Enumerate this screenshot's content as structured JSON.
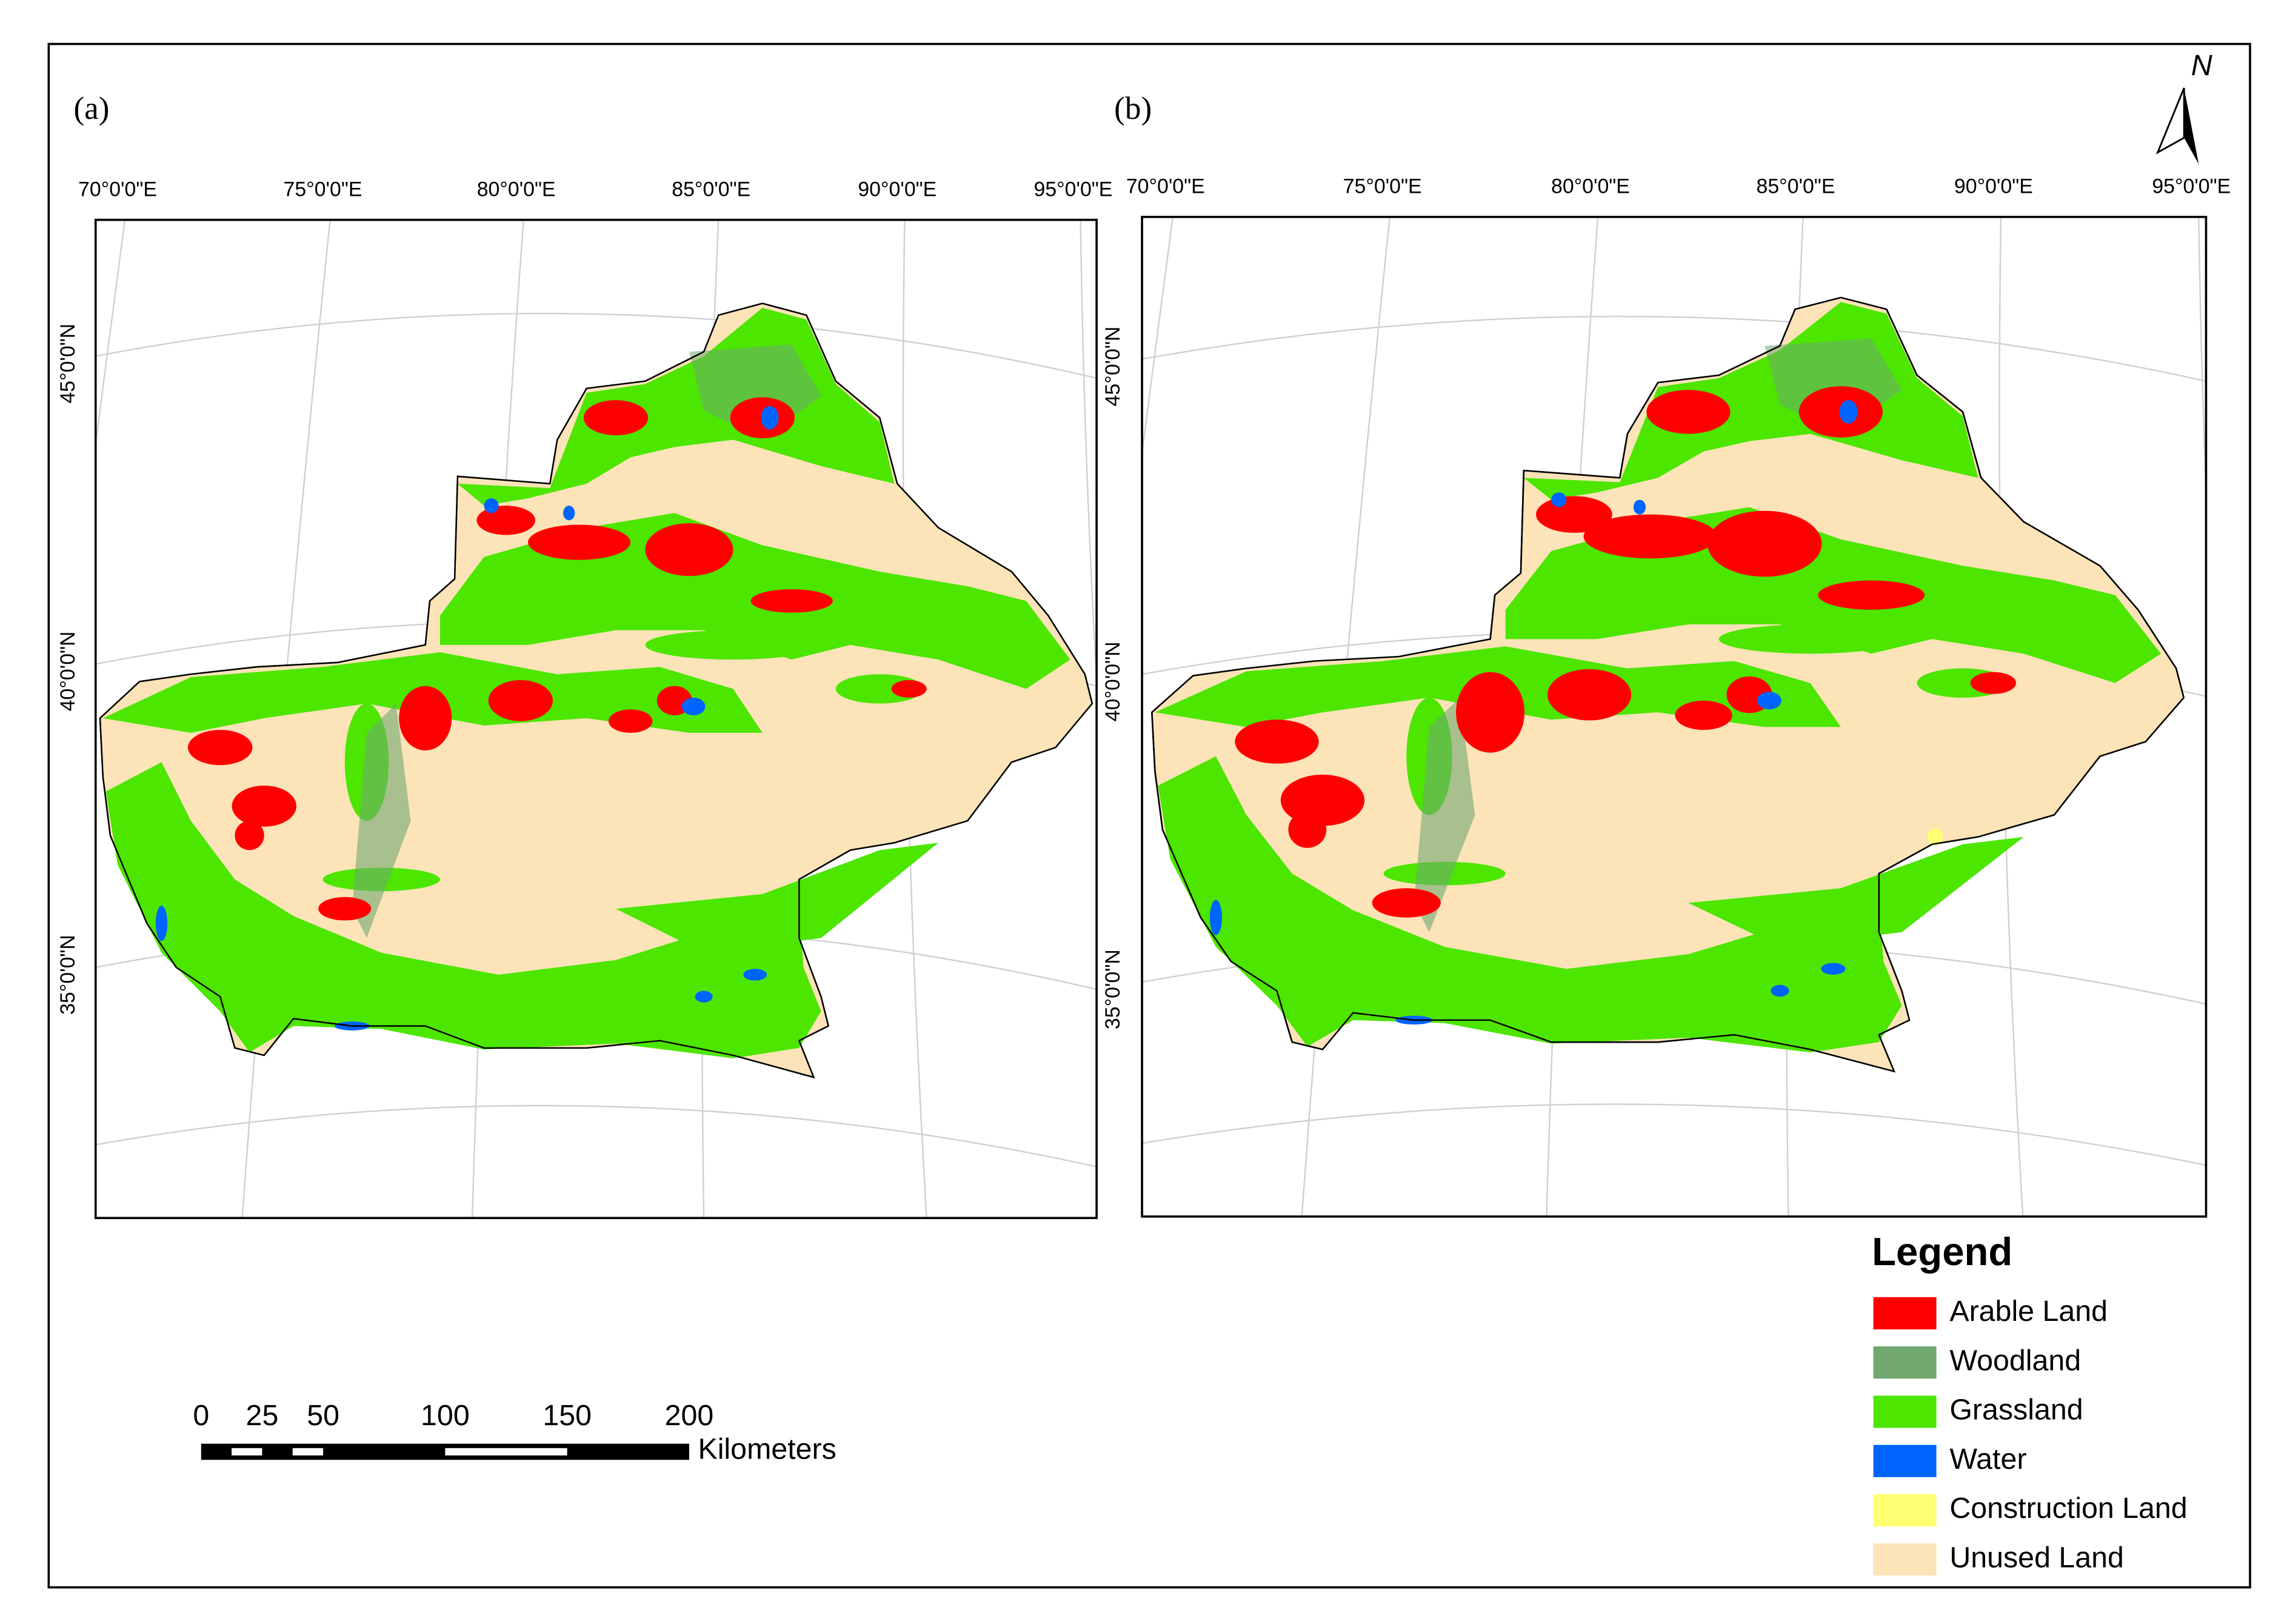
{
  "panels": [
    {
      "label": "(a)"
    },
    {
      "label": "(b)"
    }
  ],
  "longitude_labels": [
    "70°0'0\"E",
    "75°0'0\"E",
    "80°0'0\"E",
    "85°0'0\"E",
    "90°0'0\"E",
    "95°0'0\"E"
  ],
  "latitude_labels": [
    "45°0'0\"N",
    "40°0'0\"N",
    "35°0'0\"N"
  ],
  "north_arrow": "N",
  "legend": {
    "title": "Legend",
    "items": [
      {
        "label": "Arable Land",
        "color": "#ff0000"
      },
      {
        "label": "Woodland",
        "color": "#70a870"
      },
      {
        "label": "Grassland",
        "color": "#4ce600"
      },
      {
        "label": "Water",
        "color": "#0064ff"
      },
      {
        "label": "Construction Land",
        "color": "#ffff73"
      },
      {
        "label": "Unused Land",
        "color": "#fce3b8"
      }
    ]
  },
  "scale_bar": {
    "ticks": [
      0,
      25,
      50,
      100,
      150,
      200
    ],
    "unit": "Kilometers"
  }
}
